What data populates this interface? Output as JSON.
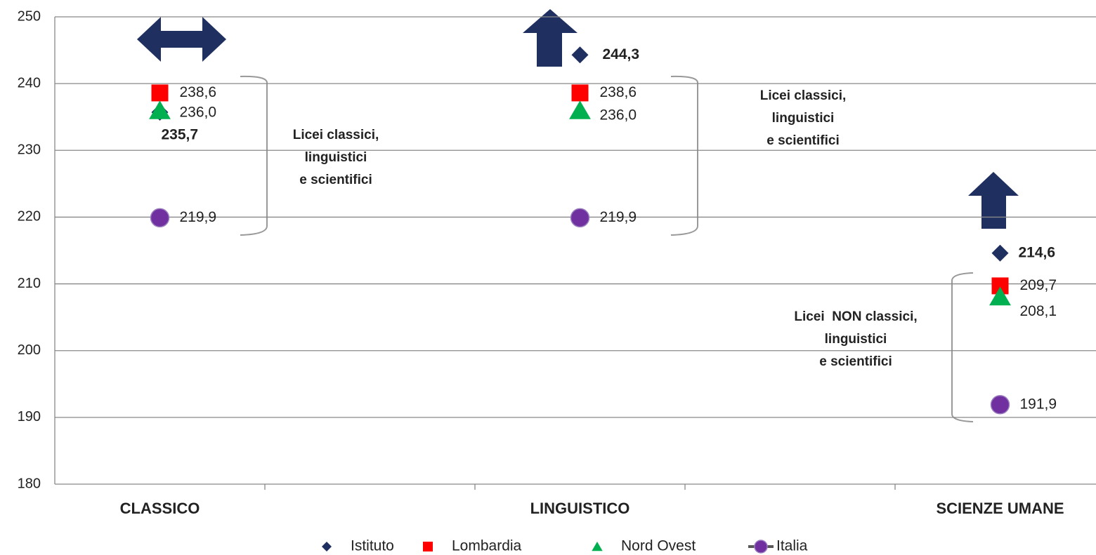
{
  "chart_data": {
    "type": "scatter",
    "categories": [
      "CLASSICO",
      null,
      "LINGUISTICO",
      null,
      "SCIENZE UMANE"
    ],
    "series": [
      {
        "name": "Istituto",
        "color": "#1f3060",
        "marker": "diamond",
        "values": [
          235.7,
          null,
          244.3,
          null,
          214.6
        ],
        "value_labels": [
          "235,7",
          null,
          "244,3",
          null,
          "214,6"
        ]
      },
      {
        "name": "Lombardia",
        "color": "#ff0000",
        "marker": "square",
        "values": [
          238.6,
          null,
          238.6,
          null,
          209.7
        ],
        "value_labels": [
          "238,6",
          null,
          "238,6",
          null,
          "209,7"
        ]
      },
      {
        "name": "Nord Ovest",
        "color": "#00b050",
        "marker": "triangle",
        "values": [
          236.0,
          null,
          236.0,
          null,
          208.1
        ],
        "value_labels": [
          "236,0",
          null,
          "236,0",
          null,
          "208,1"
        ]
      },
      {
        "name": "Italia",
        "color": "#7030a0",
        "marker": "circle",
        "values": [
          219.9,
          null,
          219.9,
          null,
          191.9
        ],
        "value_labels": [
          "219,9",
          null,
          "219,9",
          null,
          "191,9"
        ]
      }
    ],
    "annotations": [
      [
        "Licei classici,",
        "linguistici",
        "e scientifici"
      ],
      [
        "Licei classici,",
        "linguistici",
        "e scientifici"
      ],
      [
        "Licei  NON classici,",
        "linguistici",
        "e scientifici"
      ]
    ],
    "ylim": [
      180,
      250
    ],
    "yticks": [
      180,
      190,
      200,
      210,
      220,
      230,
      240,
      250
    ],
    "grid": true,
    "legend": "bottom"
  }
}
